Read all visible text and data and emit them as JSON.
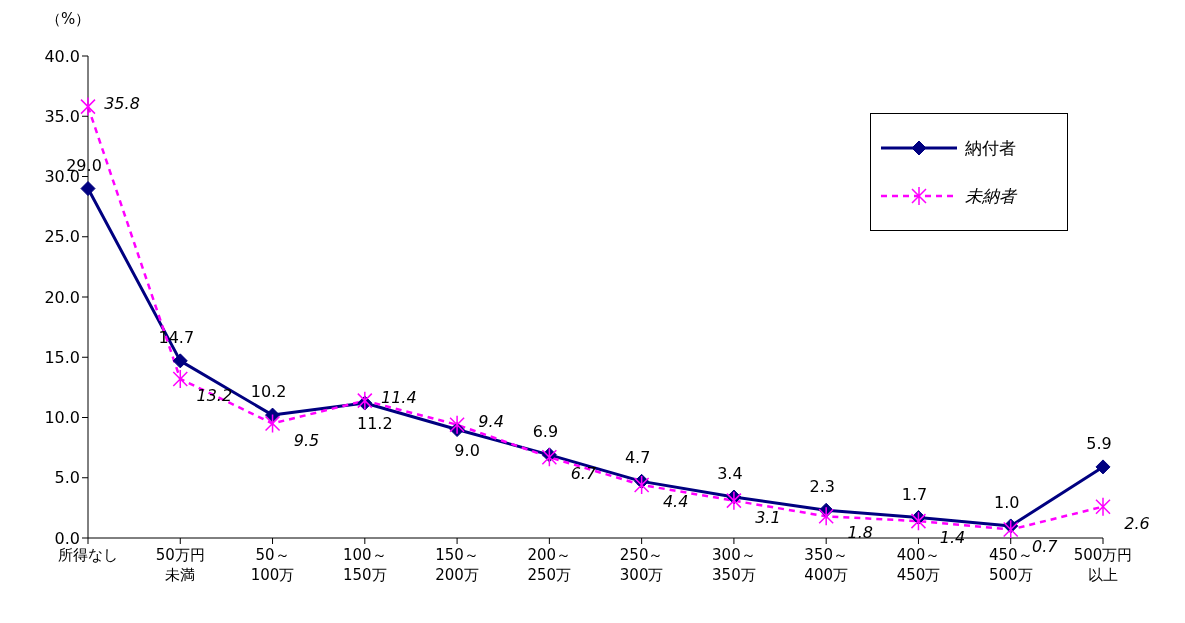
{
  "chart_data": {
    "type": "line",
    "ylabel": "（%）",
    "categories": [
      "所得なし",
      "50万円未満",
      "50～100万",
      "100～150万",
      "150～200万",
      "200～250万",
      "250～300万",
      "300～350万",
      "350～400万",
      "400～450万",
      "450～500万",
      "500万円以上"
    ],
    "series": [
      {
        "name": "納付者",
        "color": "#000080",
        "marker": "diamond",
        "line_style": "solid",
        "values": [
          29.0,
          14.7,
          10.2,
          11.2,
          9.0,
          6.9,
          4.7,
          3.4,
          2.3,
          1.7,
          1.0,
          5.9
        ],
        "value_labels": [
          "29.0",
          "14.7",
          "10.2",
          "11.2",
          "9.0",
          "6.9",
          "4.7",
          "3.4",
          "2.3",
          "1.7",
          "1.0",
          "5.9"
        ]
      },
      {
        "name": "未納者",
        "color": "#ff00ff",
        "marker": "cross",
        "line_style": "dashed",
        "values": [
          35.8,
          13.2,
          9.5,
          11.4,
          9.4,
          6.7,
          4.4,
          3.1,
          1.8,
          1.4,
          0.7,
          2.6
        ],
        "value_labels": [
          "35.8",
          "13.2",
          "9.5",
          "11.4",
          "9.4",
          "6.7",
          "4.4",
          "3.1",
          "1.8",
          "1.4",
          "0.7",
          "2.6"
        ]
      }
    ],
    "ylim": [
      0,
      40
    ],
    "yticks": [
      {
        "value": 0,
        "label": "0.0"
      },
      {
        "value": 5,
        "label": "5.0"
      },
      {
        "value": 10,
        "label": "10.0"
      },
      {
        "value": 15,
        "label": "15.0"
      },
      {
        "value": 20,
        "label": "20.0"
      },
      {
        "value": 25,
        "label": "25.0"
      },
      {
        "value": 30,
        "label": "30.0"
      },
      {
        "value": 35,
        "label": "35.0"
      },
      {
        "value": 40,
        "label": "40.0"
      }
    ],
    "grid": false,
    "legend": "top right"
  }
}
